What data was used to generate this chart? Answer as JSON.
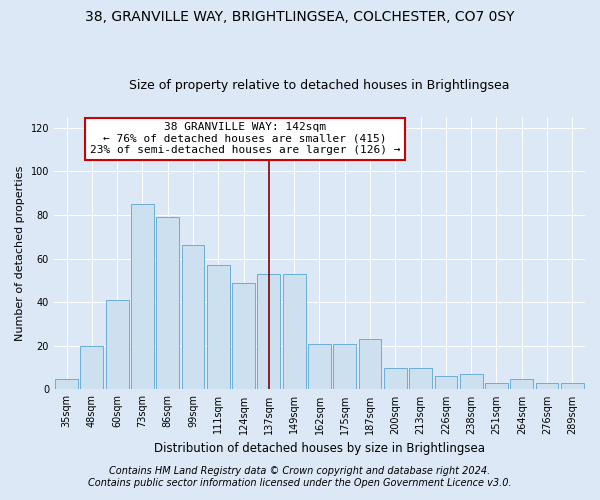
{
  "title_line1": "38, GRANVILLE WAY, BRIGHTLINGSEA, COLCHESTER, CO7 0SY",
  "title_line2": "Size of property relative to detached houses in Brightlingsea",
  "xlabel": "Distribution of detached houses by size in Brightlingsea",
  "ylabel": "Number of detached properties",
  "categories": [
    "35sqm",
    "48sqm",
    "60sqm",
    "73sqm",
    "86sqm",
    "99sqm",
    "111sqm",
    "124sqm",
    "137sqm",
    "149sqm",
    "162sqm",
    "175sqm",
    "187sqm",
    "200sqm",
    "213sqm",
    "226sqm",
    "238sqm",
    "251sqm",
    "264sqm",
    "276sqm",
    "289sqm"
  ],
  "values": [
    5,
    20,
    41,
    85,
    79,
    66,
    57,
    49,
    53,
    53,
    21,
    21,
    23,
    10,
    10,
    6,
    7,
    3,
    5,
    3,
    3
  ],
  "bar_color": "#cce0f0",
  "bar_edge_color": "#6baed6",
  "annotation_line1": "38 GRANVILLE WAY: 142sqm",
  "annotation_line2": "← 76% of detached houses are smaller (415)",
  "annotation_line3": "23% of semi-detached houses are larger (126) →",
  "annotation_box_color": "#ffffff",
  "annotation_box_edge_color": "#cc0000",
  "vline_x_index": 8,
  "vline_color": "#800000",
  "ylim": [
    0,
    125
  ],
  "yticks": [
    0,
    20,
    40,
    60,
    80,
    100,
    120
  ],
  "background_color": "#dce8f5",
  "grid_color": "#ffffff",
  "footer_line1": "Contains HM Land Registry data © Crown copyright and database right 2024.",
  "footer_line2": "Contains public sector information licensed under the Open Government Licence v3.0.",
  "title_fontsize": 10,
  "subtitle_fontsize": 9,
  "xlabel_fontsize": 8.5,
  "ylabel_fontsize": 8,
  "tick_fontsize": 7,
  "annotation_fontsize": 8,
  "footer_fontsize": 7
}
